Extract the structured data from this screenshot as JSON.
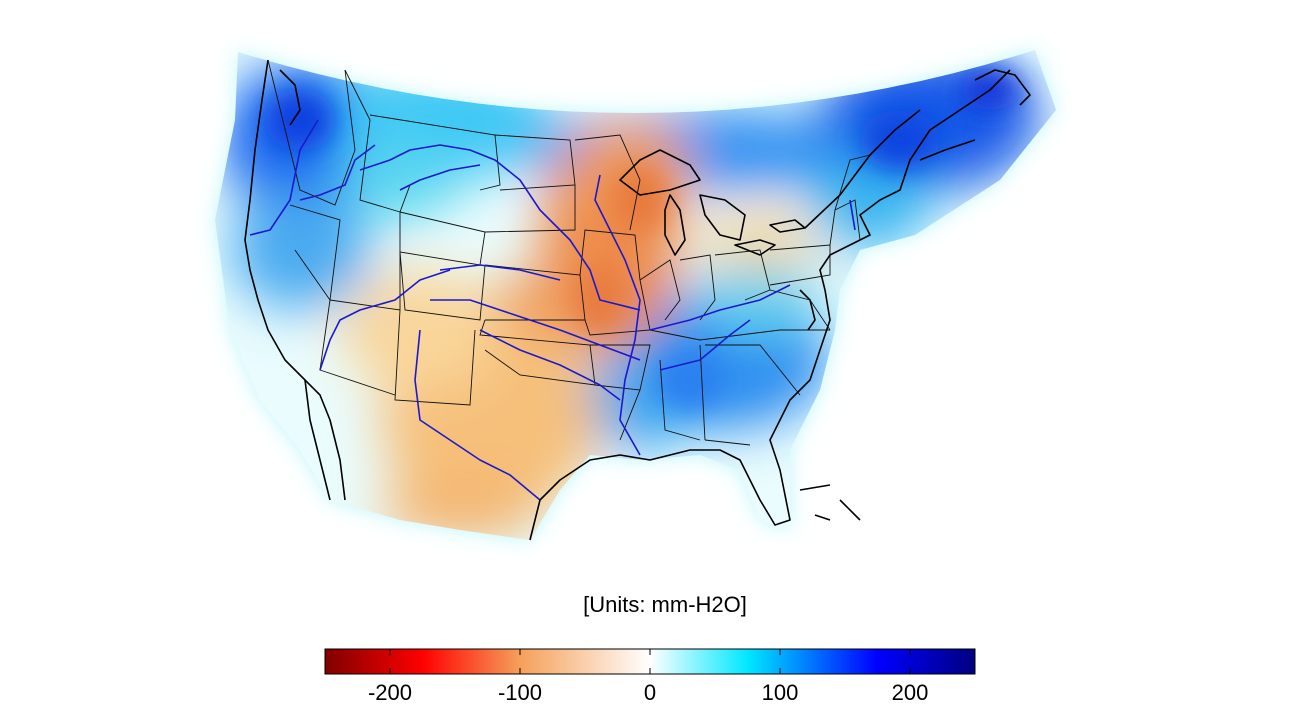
{
  "units_label": "[Units: mm-H2O]",
  "colorbar": {
    "min": -250,
    "max": 250,
    "ticks": [
      {
        "value": -200,
        "label": "-200"
      },
      {
        "value": -100,
        "label": "-100"
      },
      {
        "value": 0,
        "label": "0"
      },
      {
        "value": 100,
        "label": "100"
      },
      {
        "value": 200,
        "label": "200"
      }
    ],
    "colors": [
      "#800000",
      "#ff0000",
      "#f4a460",
      "#ffffff",
      "#00e5ff",
      "#0000ff",
      "#000080"
    ]
  },
  "map": {
    "region": "Contiguous United States",
    "overlays": [
      "state boundaries",
      "coastlines",
      "major rivers"
    ],
    "anomaly_regions": [
      {
        "area": "Pacific Northwest",
        "value": 150
      },
      {
        "area": "Northern Rockies",
        "value": 60
      },
      {
        "area": "Northern Plains / Minnesota",
        "value": -110
      },
      {
        "area": "Iowa / Missouri",
        "value": -120
      },
      {
        "area": "Kansas / Oklahoma / Texas",
        "value": -70
      },
      {
        "area": "Southwest",
        "value": -40
      },
      {
        "area": "Tennessee / Southeast",
        "value": 130
      },
      {
        "area": "Northeast / New England",
        "value": 150
      },
      {
        "area": "Michigan / Great Lakes",
        "value": -50
      }
    ]
  }
}
